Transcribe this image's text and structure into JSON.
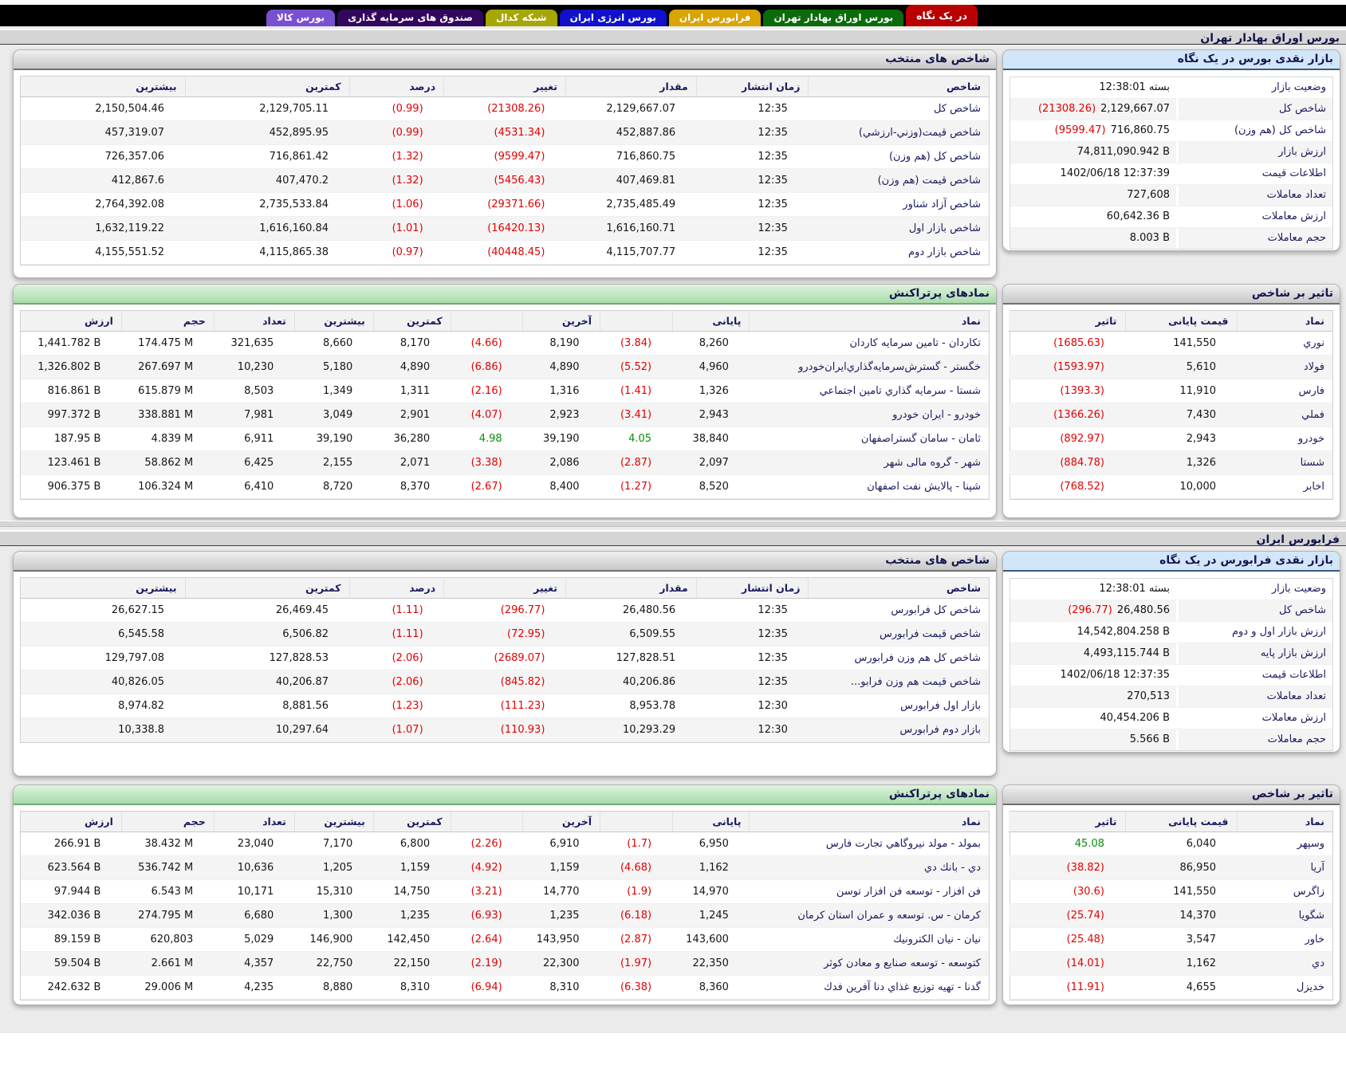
{
  "tabs": [
    {
      "label": "در یک نگاه",
      "color": "#b80000",
      "active": true
    },
    {
      "label": "بورس اوراق بهادار تهران",
      "color": "#0a6b0a"
    },
    {
      "label": "فرابورس ایران",
      "color": "#d9a404"
    },
    {
      "label": "بورس انرژی ایران",
      "color": "#1111cc"
    },
    {
      "label": "شبکه کدال",
      "color": "#a6a606"
    },
    {
      "label": "صندوق های سرمایه گذاری",
      "color": "#33075e"
    },
    {
      "label": "بورس کالا",
      "color": "#7950d2"
    }
  ],
  "sections": [
    {
      "title": "بورس اوراق بهادار تهران",
      "glance": {
        "title": "بازار نقدی بورس در یک نگاه",
        "rows": [
          {
            "label": "وضعیت بازار",
            "value": "بسته 12:38:01"
          },
          {
            "label": "شاخص کل",
            "value": "2,129,667.07",
            "change": "(21308.26)"
          },
          {
            "label": "شاخص کل (هم وزن)",
            "value": "716,860.75",
            "change": "(9599.47)"
          },
          {
            "label": "ارزش بازار",
            "value": "74,811,090.942 B"
          },
          {
            "label": "اطلاعات قیمت",
            "value": "1402/06/18 12:37:39"
          },
          {
            "label": "تعداد معاملات",
            "value": "727,608"
          },
          {
            "label": "ارزش معاملات",
            "value": "60,642.36 B"
          },
          {
            "label": "حجم معاملات",
            "value": "8.003 B"
          }
        ]
      },
      "indices": {
        "title": "شاخص های منتخب",
        "headers": [
          "شاخص",
          "زمان انتشار",
          "مقدار",
          "تغییر",
          "درصد",
          "کمترین",
          "بیشترین"
        ],
        "change_cols": [
          3,
          4
        ],
        "rows": [
          [
            "شاخص کل",
            "12:35",
            "2,129,667.07",
            "(21308.26)",
            "(0.99)",
            "2,129,705.11",
            "2,150,504.46"
          ],
          [
            "شاخص قیمت(وزني-ارزشي)",
            "12:35",
            "452,887.86",
            "(4531.34)",
            "(0.99)",
            "452,895.95",
            "457,319.07"
          ],
          [
            "شاخص کل (هم وزن)",
            "12:35",
            "716,860.75",
            "(9599.47)",
            "(1.32)",
            "716,861.42",
            "726,357.06"
          ],
          [
            "شاخص قیمت (هم وزن)",
            "12:35",
            "407,469.81",
            "(5456.43)",
            "(1.32)",
            "407,470.2",
            "412,867.6"
          ],
          [
            "شاخص آزاد شناور",
            "12:35",
            "2,735,485.49",
            "(29371.66)",
            "(1.06)",
            "2,735,533.84",
            "2,764,392.08"
          ],
          [
            "شاخص بازار اول",
            "12:35",
            "1,616,160.71",
            "(16420.13)",
            "(1.01)",
            "1,616,160.84",
            "1,632,119.22"
          ],
          [
            "شاخص بازار دوم",
            "12:35",
            "4,115,707.77",
            "(40448.45)",
            "(0.97)",
            "4,115,865.38",
            "4,155,551.52"
          ]
        ]
      },
      "most_traded": {
        "title": "نمادهای پرتراکنش",
        "headers": [
          "نماد",
          "پایانی",
          "",
          "آخرین",
          "",
          "کمترین",
          "بیشترین",
          "تعداد",
          "حجم",
          "ارزش"
        ],
        "change_cols": [
          2,
          4
        ],
        "link_col": true,
        "rows": [
          [
            "تکاردان - تامین سرمایه کاردان",
            "8,260",
            "(3.84)",
            "8,190",
            "(4.66)",
            "8,170",
            "8,660",
            "321,635",
            "174.475 M",
            "1,441.782 B"
          ],
          [
            "خگستر - گسترش‌سرمایه‌گذاري‌ایران‌خودرو",
            "4,960",
            "(5.52)",
            "4,890",
            "(6.86)",
            "4,890",
            "5,180",
            "10,230",
            "267.697 M",
            "1,326.802 B"
          ],
          [
            "شستا - سرمایه گذاري تامین اجتماعي",
            "1,326",
            "(1.41)",
            "1,316",
            "(2.16)",
            "1,311",
            "1,349",
            "8,503",
            "615.879 M",
            "816.861 B"
          ],
          [
            "خودرو - ایران خودرو",
            "2,943",
            "(3.41)",
            "2,923",
            "(4.07)",
            "2,901",
            "3,049",
            "7,981",
            "338.881 M",
            "997.372 B"
          ],
          [
            "ثامان - سامان گستراصفهان",
            "38,840",
            "4.05",
            "39,190",
            "4.98",
            "36,280",
            "39,190",
            "6,911",
            "4.839 M",
            "187.95 B"
          ],
          [
            "شهر - گروه مالی شهر",
            "2,097",
            "(2.87)",
            "2,086",
            "(3.38)",
            "2,071",
            "2,155",
            "6,425",
            "58.862 M",
            "123.461 B"
          ],
          [
            "شپنا - پالایش نفت اصفهان",
            "8,520",
            "(1.27)",
            "8,400",
            "(2.67)",
            "8,370",
            "8,720",
            "6,410",
            "106.324 M",
            "906.375 B"
          ]
        ]
      },
      "impact": {
        "title": "تاثیر بر شاخص",
        "headers": [
          "نماد",
          "قیمت پایانی",
          "تاثیر"
        ],
        "change_cols": [
          2
        ],
        "link_col": true,
        "rows": [
          [
            "نوري",
            "141,550",
            "(1685.63)"
          ],
          [
            "فولاد",
            "5,610",
            "(1593.97)"
          ],
          [
            "فارس",
            "11,910",
            "(1393.3)"
          ],
          [
            "فملي",
            "7,430",
            "(1366.26)"
          ],
          [
            "خودرو",
            "2,943",
            "(892.97)"
          ],
          [
            "شستا",
            "1,326",
            "(884.78)"
          ],
          [
            "اخابر",
            "10,000",
            "(768.52)"
          ]
        ]
      }
    },
    {
      "title": "فرابورس ایران",
      "glance": {
        "title": "بازار نقدی فرابورس در یک نگاه",
        "rows": [
          {
            "label": "وضعیت بازار",
            "value": "بسته 12:38:01"
          },
          {
            "label": "شاخص کل",
            "value": "26,480.56",
            "change": "(296.77)"
          },
          {
            "label": "ارزش بازار اول و دوم",
            "value": "14,542,804.258 B"
          },
          {
            "label": "ارزش بازار پایه",
            "value": "4,493,115.744 B"
          },
          {
            "label": "اطلاعات قیمت",
            "value": "1402/06/18 12:37:35"
          },
          {
            "label": "تعداد معاملات",
            "value": "270,513"
          },
          {
            "label": "ارزش معاملات",
            "value": "40,454.206 B"
          },
          {
            "label": "حجم معاملات",
            "value": "5.566 B"
          }
        ]
      },
      "indices": {
        "title": "شاخص های منتخب",
        "headers": [
          "شاخص",
          "زمان انتشار",
          "مقدار",
          "تغییر",
          "درصد",
          "کمترین",
          "بیشترین"
        ],
        "change_cols": [
          3,
          4
        ],
        "rows": [
          [
            "شاخص کل فرابورس",
            "12:35",
            "26,480.56",
            "(296.77)",
            "(1.11)",
            "26,469.45",
            "26,627.15"
          ],
          [
            "شاخص قیمت فرابورس",
            "12:35",
            "6,509.55",
            "(72.95)",
            "(1.11)",
            "6,506.82",
            "6,545.58"
          ],
          [
            "شاخص کل هم وزن فرابورس",
            "12:35",
            "127,828.51",
            "(2689.07)",
            "(2.06)",
            "127,828.53",
            "129,797.08"
          ],
          [
            "شاخص قیمت هم وزن فرابو...",
            "12:35",
            "40,206.86",
            "(845.82)",
            "(2.06)",
            "40,206.87",
            "40,826.05"
          ],
          [
            "بازار اول فرابورس",
            "12:30",
            "8,953.78",
            "(111.23)",
            "(1.23)",
            "8,881.56",
            "8,974.82"
          ],
          [
            "بازار دوم فرابورس",
            "12:30",
            "10,293.29",
            "(110.93)",
            "(1.07)",
            "10,297.64",
            "10,338.8"
          ]
        ]
      },
      "most_traded": {
        "title": "نمادهای پرتراکنش",
        "headers": [
          "نماد",
          "پایانی",
          "",
          "آخرین",
          "",
          "کمترین",
          "بیشترین",
          "تعداد",
          "حجم",
          "ارزش"
        ],
        "change_cols": [
          2,
          4
        ],
        "link_col": true,
        "rows": [
          [
            "بمولد - مولد نیروگاهي تجارت فارس",
            "6,950",
            "(1.7)",
            "6,910",
            "(2.26)",
            "6,800",
            "7,170",
            "23,040",
            "38.432 M",
            "266.91 B"
          ],
          [
            "دي - بانك دي",
            "1,162",
            "(4.68)",
            "1,159",
            "(4.92)",
            "1,159",
            "1,205",
            "10,636",
            "536.742 M",
            "623.564 B"
          ],
          [
            "فن افزار - توسعه فن افزار توسن",
            "14,970",
            "(1.9)",
            "14,770",
            "(3.21)",
            "14,750",
            "15,310",
            "10,171",
            "6.543 M",
            "97.944 B"
          ],
          [
            "کرمان - س. توسعه و عمران استان کرمان",
            "1,245",
            "(6.18)",
            "1,235",
            "(6.93)",
            "1,235",
            "1,300",
            "6,680",
            "274.795 M",
            "342.036 B"
          ],
          [
            "نیان - نیان الکترونیك",
            "143,600",
            "(2.87)",
            "143,950",
            "(2.64)",
            "142,450",
            "146,900",
            "5,029",
            "620,803",
            "89.159 B"
          ],
          [
            "کتوسعه - توسعه صنایع و معادن کوثر",
            "22,350",
            "(1.97)",
            "22,300",
            "(2.19)",
            "22,150",
            "22,750",
            "4,357",
            "2.661 M",
            "59.504 B"
          ],
          [
            "گدنا - تهیه توزیع غذاي دنا آفرین فدك",
            "8,360",
            "(6.38)",
            "8,310",
            "(6.94)",
            "8,310",
            "8,880",
            "4,235",
            "29.006 M",
            "242.632 B"
          ]
        ]
      },
      "impact": {
        "title": "تاثیر بر شاخص",
        "headers": [
          "نماد",
          "قیمت پایانی",
          "تاثیر"
        ],
        "change_cols": [
          2
        ],
        "link_col": true,
        "rows": [
          [
            "وسپهر",
            "6,040",
            "45.08"
          ],
          [
            "آریا",
            "86,950",
            "(38.82)"
          ],
          [
            "زاگرس",
            "141,550",
            "(30.6)"
          ],
          [
            "شگویا",
            "14,370",
            "(25.74)"
          ],
          [
            "خاور",
            "3,547",
            "(25.48)"
          ],
          [
            "دي",
            "1,162",
            "(14.01)"
          ],
          [
            "خدیزل",
            "4,655",
            "(11.91)"
          ]
        ]
      }
    }
  ]
}
